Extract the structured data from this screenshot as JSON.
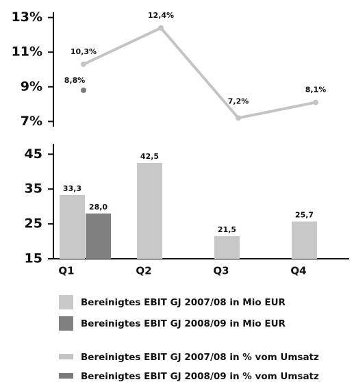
{
  "chart_data": [
    {
      "type": "line",
      "series": [
        {
          "name": "Bereinigtes EBIT GJ 2007/08 in % vom Umsatz",
          "color": "#c4c4c4",
          "values": [
            10.3,
            12.4,
            7.2,
            8.1
          ],
          "value_labels": [
            "10,3%",
            "12,4%",
            "7,2%",
            "8,1%"
          ]
        },
        {
          "name": "Bereinigtes EBIT GJ 2008/09 in % vom Umsatz",
          "color": "#7a7a7a",
          "values": [
            8.8,
            null,
            null,
            null
          ],
          "value_labels": [
            "8,8%",
            null,
            null,
            null
          ]
        }
      ],
      "ylim": [
        6.7,
        13.3
      ],
      "yticks": [
        {
          "value": 13,
          "label": "13%"
        },
        {
          "value": 11,
          "label": "11%"
        },
        {
          "value": 9,
          "label": "9%"
        },
        {
          "value": 7,
          "label": "7%"
        }
      ]
    },
    {
      "type": "bar",
      "categories": [
        "Q1",
        "Q2",
        "Q3",
        "Q4"
      ],
      "series": [
        {
          "name": "Bereinigtes EBIT GJ 2007/08 in Mio EUR",
          "color": "#c8c8c8",
          "values": [
            33.3,
            42.5,
            21.5,
            25.7
          ],
          "value_labels": [
            "33,3",
            "42,5",
            "21,5",
            "25,7"
          ]
        },
        {
          "name": "Bereinigtes EBIT GJ 2008/09 in Mio EUR",
          "color": "#808080",
          "values": [
            28.0,
            null,
            null,
            null
          ],
          "value_labels": [
            "28,0",
            null,
            null,
            null
          ]
        }
      ],
      "ylim": [
        15,
        48
      ],
      "yticks": [
        45,
        35,
        25,
        15
      ]
    }
  ]
}
